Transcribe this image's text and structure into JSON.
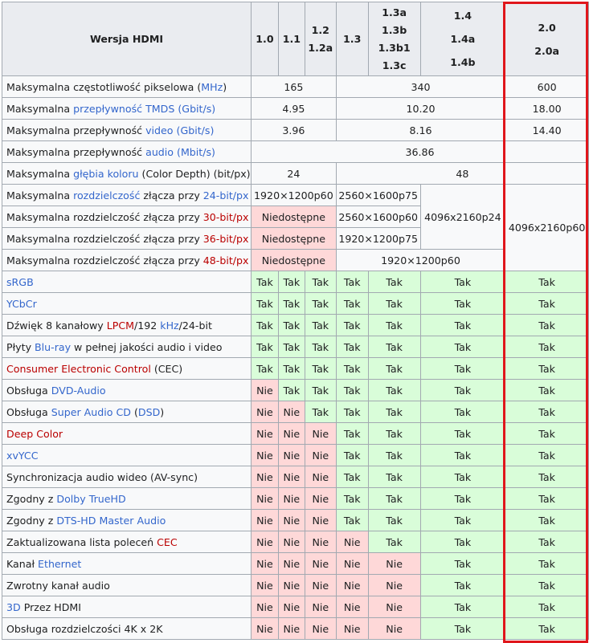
{
  "header": {
    "title": "Wersja HDMI",
    "v10": "1.0",
    "v11": "1.1",
    "v12": "1.2",
    "v12a": "1.2a",
    "v13": "1.3",
    "v13a": "1.3a",
    "v13b": "1.3b",
    "v13b1": "1.3b1",
    "v13c": "1.3c",
    "v14": "1.4",
    "v14a": "1.4a",
    "v14b": "1.4b",
    "v20": "2.0",
    "v20a": "2.0a"
  },
  "spec": {
    "pixel": {
      "p1": "Maksymalna częstotliwość pikselowa (",
      "link": "MHz",
      "p2": ")",
      "v1": "165",
      "v2": "340",
      "v3": "600"
    },
    "tmds": {
      "p1": "Maksymalna ",
      "link1": "przepływność TMDS",
      "p2": " ",
      "link2": "(Gbit/s)",
      "v1": "4.95",
      "v2": "10.20",
      "v3": "18.00"
    },
    "video": {
      "p1": "Maksymalna przepływność ",
      "link1": "video",
      "p2": " ",
      "link2": "(Gbit/s)",
      "v1": "3.96",
      "v2": "8.16",
      "v3": "14.40"
    },
    "audio": {
      "p1": "Maksymalna przepływność ",
      "link1": "audio",
      "p2": " ",
      "link2": "(Mbit/s)",
      "v1": "36.86"
    },
    "depth": {
      "p1": "Maksymalna ",
      "link": "głębia koloru",
      "p2": " (Color Depth) (bit/px)",
      "v1": "24",
      "v2": "48"
    },
    "res24": {
      "p1": "Maksymalna ",
      "link1": "rozdzielczość",
      "p2": " złącza przy ",
      "link2": "24-bit/px",
      "v1": "1920×1200p60",
      "v2": "2560×1600p75",
      "v3": "4096x2160p24",
      "v4": "4096x2160p60"
    },
    "res30": {
      "p1": "Maksymalna rozdzielczość złącza przy ",
      "link": "30-bit/px",
      "v1": "Niedostępne",
      "v2": "2560×1600p60"
    },
    "res36": {
      "p1": "Maksymalna rozdzielczość złącza przy ",
      "link": "36-bit/px",
      "v1": "Niedostępne",
      "v2": "1920×1200p75"
    },
    "res48": {
      "p1": "Maksymalna rozdzielczość złącza przy ",
      "link": "48-bit/px",
      "v1": "Niedostępne",
      "v2": "1920×1200p60"
    }
  },
  "labels": {
    "yes": "Tak",
    "no": "Nie"
  },
  "features": {
    "srgb": {
      "link": "sRGB"
    },
    "ycbcr": {
      "link": "YCbCr"
    },
    "lpcm": {
      "p1": "Dźwięk 8 kanałowy ",
      "link1": "LPCM",
      "p2": "/192 ",
      "link2": "kHz",
      "p3": "/24-bit"
    },
    "bluray": {
      "p1": "Płyty ",
      "link": "Blu-ray",
      "p2": " w pełnej jakości audio i video"
    },
    "cec": {
      "link": "Consumer Electronic Control",
      "p2": " (CEC)"
    },
    "dvdaudio": {
      "p1": "Obsługa ",
      "link": "DVD-Audio"
    },
    "sacd": {
      "p1": "Obsługa ",
      "link1": "Super Audio CD",
      "p2": " (",
      "link2": "DSD",
      "p3": ")"
    },
    "deepcolor": {
      "link": "Deep Color"
    },
    "xvycc": {
      "link": "xvYCC"
    },
    "avsync": {
      "p1": "Synchronizacja audio wideo (AV-sync)"
    },
    "truehd": {
      "p1": "Zgodny z ",
      "link": "Dolby TrueHD"
    },
    "dtshd": {
      "p1": "Zgodny z ",
      "link": "DTS-HD Master Audio"
    },
    "ceclist": {
      "p1": "Zaktualizowana lista poleceń ",
      "link": "CEC"
    },
    "ethernet": {
      "p1": "Kanał ",
      "link": "Ethernet"
    },
    "arc": {
      "p1": "Zwrotny kanał audio"
    },
    "hdmi3d": {
      "link": "3D",
      "p2": " Przez HDMI"
    },
    "res4k": {
      "p1": "Obsługa rozdzielczości 4K x 2K"
    }
  },
  "colors": {
    "yes_bg": "#d9fdd9",
    "no_bg": "#fed8d8",
    "highlight_border": "#e0161b",
    "link_blue": "#3366cc",
    "link_red": "#ba0000"
  }
}
